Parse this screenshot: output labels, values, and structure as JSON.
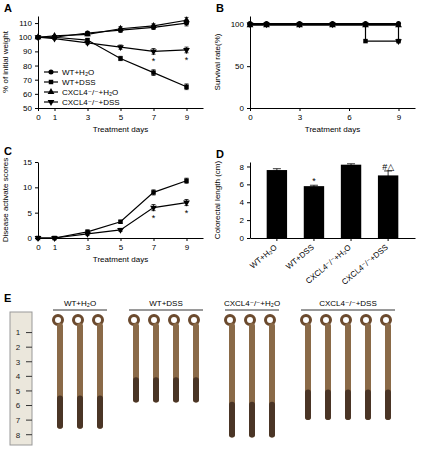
{
  "chart_data": [
    {
      "panel": "A",
      "type": "line",
      "x_label": "Treatment days",
      "y_label": "% of initial weight",
      "x": [
        0,
        1,
        3,
        5,
        7,
        9
      ],
      "xlim": [
        0,
        10
      ],
      "xticks": [
        0,
        1,
        3,
        5,
        7,
        9
      ],
      "ylim": [
        50,
        115
      ],
      "yticks": [
        50,
        60,
        70,
        80,
        90,
        100,
        110
      ],
      "legend": "lower left",
      "series": [
        {
          "name": "WT+H₂O",
          "color": "#000000",
          "marker": "circle",
          "values": [
            100,
            100,
            103,
            105,
            107,
            110
          ],
          "errors": [
            0,
            0,
            1,
            1.5,
            1.5,
            2
          ]
        },
        {
          "name": "WT+DSS",
          "color": "#000000",
          "marker": "square",
          "values": [
            100,
            100,
            98,
            85,
            75,
            65
          ],
          "errors": [
            0,
            0,
            1,
            1.5,
            2,
            2
          ]
        },
        {
          "name": "CXCL4⁻/⁻+H₂O",
          "color": "#000000",
          "marker": "triangle",
          "values": [
            100,
            101,
            102,
            106,
            108,
            112
          ],
          "errors": [
            0,
            0,
            1,
            1.5,
            1.5,
            2
          ]
        },
        {
          "name": "CXCL4⁻/⁻+DSS",
          "color": "#000000",
          "marker": "triangle-down",
          "values": [
            100,
            99,
            96,
            93,
            90,
            91
          ],
          "errors": [
            0,
            0,
            1,
            1.5,
            2,
            2
          ]
        }
      ],
      "annotations": [
        {
          "x": 7,
          "y": 84,
          "text": "*"
        },
        {
          "x": 9,
          "y": 85,
          "text": "*"
        }
      ]
    },
    {
      "panel": "B",
      "type": "line",
      "x_label": "Treatment days",
      "y_label": "Survival rate(%)",
      "x": [
        0,
        1,
        3,
        5,
        7,
        9
      ],
      "xlim": [
        0,
        10
      ],
      "xticks": [
        0,
        3,
        6,
        9
      ],
      "ylim": [
        0,
        110
      ],
      "yticks": [
        0,
        50,
        100
      ],
      "series": [
        {
          "color": "#000000",
          "marker": "circle",
          "line_style": "step",
          "values": [
            101,
            101,
            101,
            101,
            101,
            101
          ]
        },
        {
          "color": "#000000",
          "marker": "square",
          "line_style": "step",
          "values": [
            100,
            100,
            100,
            100,
            80,
            80
          ]
        },
        {
          "color": "#000000",
          "marker": "triangle",
          "line_style": "step",
          "values": [
            99,
            99,
            99,
            99,
            99,
            99
          ]
        },
        {
          "color": "#000000",
          "marker": "triangle-down",
          "line_style": "step",
          "values": [
            100,
            100,
            100,
            100,
            100,
            80
          ]
        }
      ]
    },
    {
      "panel": "C",
      "type": "line",
      "x_label": "Treatment days",
      "y_label": "Disease activate scores",
      "x": [
        0,
        1,
        3,
        5,
        7,
        9
      ],
      "xlim": [
        0,
        10
      ],
      "xticks": [
        0,
        1,
        3,
        5,
        7,
        9
      ],
      "ylim": [
        0,
        15
      ],
      "yticks": [
        0,
        5,
        10,
        15
      ],
      "series": [
        {
          "color": "#000000",
          "marker": "square",
          "values": [
            0,
            0,
            1.2,
            3.2,
            9,
            11.3
          ],
          "errors": [
            0,
            0,
            0.4,
            0.3,
            0.5,
            0.5
          ]
        },
        {
          "color": "#000000",
          "marker": "triangle-down",
          "values": [
            0,
            0,
            0.8,
            1.6,
            6,
            7
          ],
          "errors": [
            0,
            0,
            0.3,
            0.3,
            0.6,
            0.6
          ]
        }
      ],
      "annotations": [
        {
          "x": 7,
          "y": 4.3,
          "text": "*"
        },
        {
          "x": 9,
          "y": 5.3,
          "text": "*"
        }
      ]
    },
    {
      "panel": "D",
      "type": "bar",
      "y_label": "Colorectal length (cm)",
      "categories": [
        "WT+H₂O",
        "WT+DSS",
        "CXCL4⁻/⁻+H₂O",
        "CXCL4⁻/⁻+DSS"
      ],
      "values": [
        7.6,
        5.8,
        8.2,
        7.0
      ],
      "errors": [
        0.15,
        0.1,
        0.1,
        0.5
      ],
      "color": "#000000",
      "ylim": [
        0,
        8.5
      ],
      "yticks": [
        0,
        2,
        4,
        6,
        8
      ],
      "annotations": [
        {
          "x": "WT+DSS",
          "y": 6.4,
          "text": "*"
        },
        {
          "x": "CXCL4⁻/⁻+DSS",
          "y": 8.0,
          "text": "#△"
        }
      ]
    },
    {
      "panel": "E",
      "type": "image",
      "groups": [
        "WT+H₂O",
        "WT+DSS",
        "CXCL4⁻/⁻+H₂O",
        "CXCL4⁻/⁻+DSS"
      ],
      "counts": [
        3,
        4,
        3,
        5
      ],
      "ruler_ticks": [
        1,
        2,
        3,
        4,
        5,
        6,
        7,
        8
      ]
    }
  ]
}
